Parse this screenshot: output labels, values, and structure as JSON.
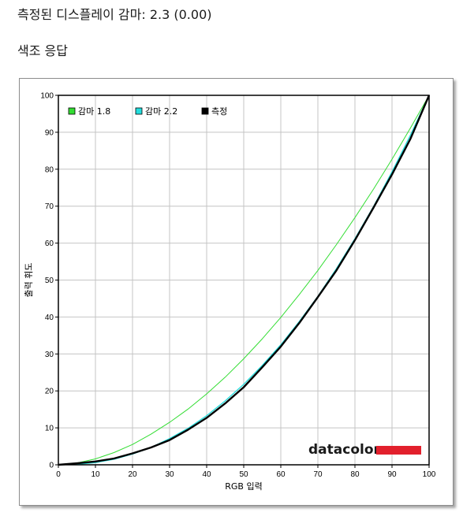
{
  "header": {
    "title": "측정된 디스플레이 감마: 2.3 (0.00)",
    "section": "색조 응답"
  },
  "logo": {
    "text": "datacolor",
    "color": "#e2202c"
  },
  "chart_data": {
    "type": "line",
    "xlabel": "RGB 입력",
    "ylabel": "출력 휘도",
    "xlim": [
      0,
      100
    ],
    "ylim": [
      0,
      100
    ],
    "xticks": [
      0,
      10,
      20,
      30,
      40,
      50,
      60,
      70,
      80,
      90,
      100
    ],
    "yticks": [
      0,
      10,
      20,
      30,
      40,
      50,
      60,
      70,
      80,
      90,
      100
    ],
    "grid": true,
    "legend_position": "top-left",
    "series": [
      {
        "name": "감마 1.8",
        "color": "#33dd33",
        "x": [
          0,
          5,
          10,
          15,
          20,
          25,
          30,
          35,
          40,
          45,
          50,
          55,
          60,
          65,
          70,
          75,
          80,
          85,
          90,
          95,
          100
        ],
        "y": [
          0,
          0.5,
          1.6,
          3.3,
          5.5,
          8.3,
          11.5,
          15.1,
          19.2,
          23.7,
          28.7,
          34.1,
          39.9,
          46.1,
          52.6,
          59.6,
          66.9,
          74.6,
          82.7,
          91.2,
          100
        ]
      },
      {
        "name": "감마 2.2",
        "color": "#22dddd",
        "x": [
          0,
          5,
          10,
          15,
          20,
          25,
          30,
          35,
          40,
          45,
          50,
          55,
          60,
          65,
          70,
          75,
          80,
          85,
          90,
          95,
          100
        ],
        "y": [
          0,
          0.1,
          0.6,
          1.5,
          2.9,
          4.7,
          7.1,
          9.9,
          13.3,
          17.3,
          21.8,
          26.9,
          32.5,
          38.8,
          45.6,
          53.1,
          61.2,
          69.9,
          79.3,
          89.3,
          100
        ]
      },
      {
        "name": "측정",
        "color": "#000000",
        "x": [
          0,
          5,
          10,
          15,
          20,
          25,
          30,
          35,
          40,
          45,
          50,
          55,
          60,
          65,
          70,
          75,
          80,
          85,
          90,
          95,
          100
        ],
        "y": [
          0,
          0.4,
          0.9,
          1.7,
          3.1,
          4.7,
          6.7,
          9.5,
          12.7,
          16.6,
          21.0,
          26.4,
          32.0,
          38.4,
          45.4,
          52.6,
          60.8,
          69.6,
          78.6,
          88.3,
          100
        ]
      }
    ]
  }
}
